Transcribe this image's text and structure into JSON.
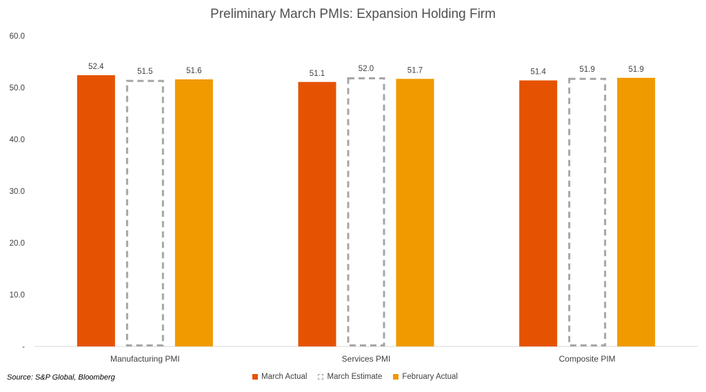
{
  "chart_data": {
    "type": "bar",
    "title": "Preliminary March PMIs: Expansion Holding Firm",
    "categories": [
      "Manufacturing PMI",
      "Services PMI",
      "Composite PIM"
    ],
    "series": [
      {
        "name": "March Actual",
        "values": [
          52.4,
          51.1,
          51.4
        ],
        "color": "#E55302",
        "style": "solid"
      },
      {
        "name": "March Estimate",
        "values": [
          51.5,
          52.0,
          51.9
        ],
        "color": "#A6A6A6",
        "style": "dashed"
      },
      {
        "name": "February Actual",
        "values": [
          51.6,
          51.7,
          51.9
        ],
        "color": "#F09A00",
        "style": "solid"
      }
    ],
    "data_labels": [
      [
        "52.4",
        "51.1",
        "51.4"
      ],
      [
        "51.5",
        "52.0",
        "51.9"
      ],
      [
        "51.6",
        "51.7",
        "51.9"
      ]
    ],
    "ylim": [
      0,
      60
    ],
    "y_ticks": [
      {
        "value": 0,
        "label": "-"
      },
      {
        "value": 10,
        "label": "10.0"
      },
      {
        "value": 20,
        "label": "20.0"
      },
      {
        "value": 30,
        "label": "30.0"
      },
      {
        "value": 40,
        "label": "40.0"
      },
      {
        "value": 50,
        "label": "50.0"
      },
      {
        "value": 60,
        "label": "60.0"
      }
    ],
    "grid": false,
    "legend": "bottom"
  },
  "source": "Source: S&P Global, Bloomberg"
}
